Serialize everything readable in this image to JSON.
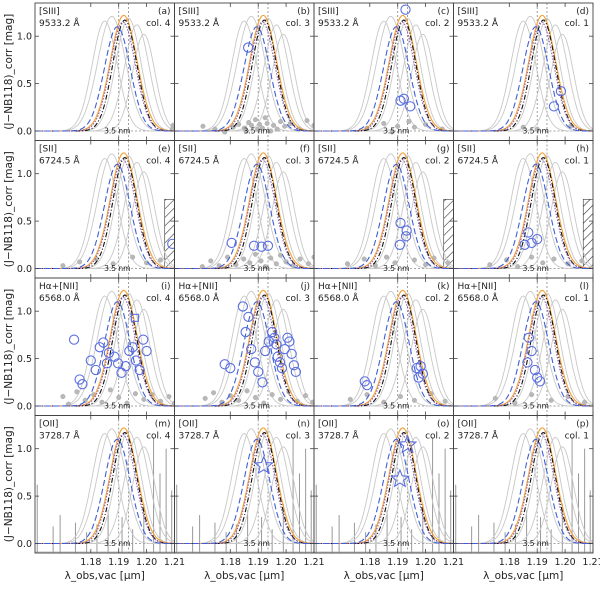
{
  "chart_data": {
    "type": "line",
    "layout": {
      "rows": 4,
      "cols": 4
    },
    "xlabel": "λ_obs,vac [μm]",
    "ylabel": "(J−NB118)_corr [mag]",
    "xlim": [
      1.16,
      1.21
    ],
    "xticks": [
      1.18,
      1.19,
      1.2,
      1.21
    ],
    "xtick_labels": [
      "1.18",
      "1.19",
      "1.20",
      "1.21"
    ],
    "ylim": [
      -0.1,
      1.35
    ],
    "yticks": [
      0.0,
      0.5,
      1.0
    ],
    "ytick_labels": [
      "0.0",
      "0.5",
      "1.0"
    ],
    "bandwidth_label": "3.5 nm",
    "colors": {
      "orange": "#f5a030",
      "black": "#111111",
      "purple": "#9060b0",
      "blue": "#3f5fd8",
      "gray_curve": "#c8c8c8",
      "gray_point": "#b8b8b8",
      "marker": "#5a6fe0"
    },
    "filter_curves": [
      {
        "name": "orange solid",
        "center": 1.1918,
        "sigma": 0.0048,
        "peak": 1.22,
        "color": "orange",
        "dash": ""
      },
      {
        "name": "black dash-dot",
        "center": 1.1922,
        "sigma": 0.0043,
        "peak": 1.17,
        "color": "black",
        "dash": "5,2,1,2"
      },
      {
        "name": "purple dotted",
        "center": 1.1915,
        "sigma": 0.0045,
        "peak": 1.15,
        "color": "purple",
        "dash": "1.5,1.5"
      },
      {
        "name": "blue dashed",
        "center": 1.1895,
        "sigma": 0.0046,
        "peak": 1.1,
        "color": "blue",
        "dash": "6,3"
      }
    ],
    "gray_curves": [
      {
        "center": 1.185,
        "sigma": 0.0045,
        "peak": 1.16
      },
      {
        "center": 1.1875,
        "sigma": 0.005,
        "peak": 1.21
      },
      {
        "center": 1.1935,
        "sigma": 0.0045,
        "peak": 1.19
      },
      {
        "center": 1.1965,
        "sigma": 0.0044,
        "peak": 1.12
      },
      {
        "center": 1.199,
        "sigma": 0.004,
        "peak": 1.02
      }
    ],
    "panels": [
      {
        "id": "a",
        "line": "[SIII]",
        "wave": "9533.2 Å",
        "col": "col. 4",
        "circles": [],
        "gray": [
          [
            1.2095,
            0.06
          ],
          [
            1.2092,
            0.02
          ]
        ]
      },
      {
        "id": "b",
        "line": "[SIII]",
        "wave": "9533.2 Å",
        "col": "col. 3",
        "circles": [
          [
            1.1864,
            0.88
          ]
        ],
        "gray": [
          [
            1.1702,
            0.05
          ],
          [
            1.1745,
            0.02
          ],
          [
            1.178,
            -0.01
          ],
          [
            1.181,
            0.04
          ],
          [
            1.183,
            0.07
          ],
          [
            1.185,
            0.03
          ],
          [
            1.1858,
            0.0
          ],
          [
            1.1866,
            0.09
          ],
          [
            1.1876,
            0.06
          ],
          [
            1.189,
            0.12
          ],
          [
            1.1898,
            0.02
          ],
          [
            1.1905,
            0.07
          ],
          [
            1.1915,
            0.03
          ],
          [
            1.1925,
            0.14
          ],
          [
            1.1932,
            0.08
          ],
          [
            1.1945,
            0.0
          ],
          [
            1.1955,
            0.06
          ],
          [
            1.1968,
            0.02
          ],
          [
            1.198,
            0.1
          ],
          [
            1.1995,
            0.05
          ],
          [
            1.2015,
            0.08
          ],
          [
            1.2045,
            0.02
          ],
          [
            1.2075,
            0.11
          ],
          [
            1.21,
            0.06
          ]
        ]
      },
      {
        "id": "c",
        "line": "[SIII]",
        "wave": "9533.2 Å",
        "col": "col. 2",
        "circles": [
          [
            1.1928,
            1.28
          ],
          [
            1.191,
            0.32
          ],
          [
            1.1922,
            0.34
          ],
          [
            1.1945,
            0.26
          ]
        ],
        "gray": [
          [
            1.179,
            0.03
          ],
          [
            1.185,
            0.08
          ],
          [
            1.188,
            -0.01
          ],
          [
            1.19,
            0.05
          ],
          [
            1.194,
            0.1
          ],
          [
            1.196,
            0.04
          ],
          [
            1.2,
            0.07
          ],
          [
            1.206,
            0.02
          ]
        ]
      },
      {
        "id": "d",
        "line": "[SIII]",
        "wave": "9533.2 Å",
        "col": "col. 1",
        "circles": [
          [
            1.1985,
            0.42
          ],
          [
            1.196,
            0.26
          ]
        ],
        "gray": [
          [
            1.185,
            0.04
          ],
          [
            1.19,
            0.02
          ],
          [
            1.202,
            0.05
          ]
        ]
      },
      {
        "id": "e",
        "line": "[SII]",
        "wave": "6724.5 Å",
        "col": "col. 4",
        "circles": [
          [
            1.2092,
            0.26
          ]
        ],
        "gray": [
          [
            1.17,
            0.03
          ],
          [
            1.176,
            0.07
          ],
          [
            1.182,
            0.1
          ],
          [
            1.188,
            0.05
          ],
          [
            1.195,
            0.12
          ],
          [
            1.2,
            0.06
          ],
          [
            1.205,
            0.09
          ]
        ],
        "hatch": true
      },
      {
        "id": "f",
        "line": "[SII]",
        "wave": "6724.5 Å",
        "col": "col. 3",
        "circles": [
          [
            1.1805,
            0.27
          ],
          [
            1.1885,
            0.24
          ],
          [
            1.1912,
            0.23
          ],
          [
            1.1935,
            0.24
          ]
        ],
        "gray": [
          [
            1.17,
            0.02
          ],
          [
            1.173,
            0.08
          ],
          [
            1.176,
            0.03
          ],
          [
            1.179,
            0.12
          ],
          [
            1.182,
            0.04
          ],
          [
            1.1848,
            0.1
          ],
          [
            1.187,
            0.06
          ],
          [
            1.189,
            0.15
          ],
          [
            1.191,
            0.08
          ],
          [
            1.1925,
            0.02
          ],
          [
            1.1945,
            0.11
          ],
          [
            1.1965,
            0.05
          ],
          [
            1.198,
            0.14
          ],
          [
            1.2,
            0.07
          ],
          [
            1.2025,
            0.03
          ],
          [
            1.205,
            0.1
          ],
          [
            1.208,
            0.05
          ],
          [
            1.21,
            0.12
          ]
        ]
      },
      {
        "id": "g",
        "line": "[SII]",
        "wave": "6724.5 Å",
        "col": "col. 2",
        "circles": [
          [
            1.191,
            0.48
          ],
          [
            1.1932,
            0.4
          ],
          [
            1.193,
            0.34
          ],
          [
            1.1908,
            0.25
          ]
        ],
        "gray": [
          [
            1.172,
            0.05
          ],
          [
            1.178,
            0.1
          ],
          [
            1.182,
            0.03
          ],
          [
            1.186,
            0.12
          ],
          [
            1.189,
            0.06
          ],
          [
            1.196,
            0.09
          ],
          [
            1.2,
            0.04
          ],
          [
            1.203,
            0.11
          ],
          [
            1.208,
            0.06
          ]
        ],
        "hatch": true
      },
      {
        "id": "h",
        "line": "[SII]",
        "wave": "6724.5 Å",
        "col": "col. 1",
        "circles": [
          [
            1.1868,
            0.38
          ],
          [
            1.1855,
            0.25
          ],
          [
            1.188,
            0.27
          ],
          [
            1.19,
            0.31
          ]
        ],
        "gray": [
          [
            1.173,
            0.04
          ],
          [
            1.179,
            0.09
          ],
          [
            1.183,
            0.02
          ],
          [
            1.188,
            0.12
          ],
          [
            1.192,
            0.06
          ],
          [
            1.196,
            0.1
          ],
          [
            1.201,
            0.05
          ],
          [
            1.206,
            0.08
          ]
        ],
        "hatch": true
      },
      {
        "id": "i",
        "line": "Hα+[NII]",
        "wave": "6568.0 Å",
        "col": "col. 4",
        "circles": [
          [
            1.174,
            0.7
          ],
          [
            1.176,
            0.28
          ],
          [
            1.177,
            0.23
          ],
          [
            1.18,
            0.48
          ],
          [
            1.1818,
            0.38
          ],
          [
            1.1832,
            0.62
          ],
          [
            1.1845,
            0.67
          ],
          [
            1.1858,
            0.45
          ],
          [
            1.1865,
            0.56
          ],
          [
            1.1885,
            0.52
          ],
          [
            1.1898,
            0.45
          ],
          [
            1.191,
            0.35
          ],
          [
            1.1925,
            0.42
          ],
          [
            1.1938,
            0.58
          ],
          [
            1.195,
            0.62
          ],
          [
            1.1962,
            0.48
          ],
          [
            1.1975,
            0.38
          ],
          [
            1.1988,
            0.7
          ],
          [
            1.2,
            0.58
          ]
        ],
        "squares": [
          [
            1.1958,
            0.93
          ]
        ],
        "gray": [
          [
            1.17,
            0.1
          ],
          [
            1.172,
            0.02
          ],
          [
            1.175,
            0.15
          ],
          [
            1.178,
            0.06
          ],
          [
            1.181,
            0.12
          ],
          [
            1.184,
            0.04
          ],
          [
            1.187,
            0.17
          ],
          [
            1.19,
            0.09
          ],
          [
            1.193,
            0.03
          ],
          [
            1.196,
            0.13
          ],
          [
            1.199,
            0.07
          ],
          [
            1.202,
            0.12
          ],
          [
            1.205,
            0.05
          ],
          [
            1.208,
            0.1
          ],
          [
            1.21,
            0.03
          ]
        ]
      },
      {
        "id": "j",
        "line": "Hα+[NII]",
        "wave": "6568.0 Å",
        "col": "col. 3",
        "circles": [
          [
            1.178,
            0.44
          ],
          [
            1.18,
            0.4
          ],
          [
            1.1832,
            1.4
          ],
          [
            1.1845,
            1.05
          ],
          [
            1.1855,
            0.78
          ],
          [
            1.1865,
            0.94
          ],
          [
            1.1875,
            0.6
          ],
          [
            1.1888,
            0.46
          ],
          [
            1.19,
            0.36
          ],
          [
            1.1915,
            0.25
          ],
          [
            1.1925,
            0.58
          ],
          [
            1.1938,
            0.68
          ],
          [
            1.195,
            0.78
          ],
          [
            1.1958,
            0.72
          ],
          [
            1.1965,
            0.65
          ],
          [
            1.197,
            0.52
          ],
          [
            1.1978,
            0.46
          ],
          [
            1.1985,
            0.4
          ],
          [
            1.1995,
            0.6
          ],
          [
            1.2005,
            0.72
          ],
          [
            1.2012,
            0.68
          ],
          [
            1.202,
            0.55
          ],
          [
            1.2028,
            0.43
          ],
          [
            1.2035,
            0.36
          ]
        ],
        "gray": [
          [
            1.171,
            0.08
          ],
          [
            1.174,
            0.14
          ],
          [
            1.177,
            0.04
          ],
          [
            1.18,
            0.11
          ],
          [
            1.183,
            0.06
          ],
          [
            1.186,
            0.16
          ],
          [
            1.189,
            0.09
          ],
          [
            1.192,
            0.03
          ],
          [
            1.195,
            0.12
          ],
          [
            1.198,
            0.07
          ],
          [
            1.201,
            0.15
          ],
          [
            1.204,
            0.05
          ],
          [
            1.207,
            0.11
          ],
          [
            1.2095,
            0.04
          ]
        ]
      },
      {
        "id": "k",
        "line": "Hα+[NII]",
        "wave": "6568.0 Å",
        "col": "col. 2",
        "circles": [
          [
            1.1782,
            0.26
          ],
          [
            1.179,
            0.22
          ],
          [
            1.1968,
            0.4
          ],
          [
            1.1982,
            0.42
          ],
          [
            1.199,
            0.34
          ],
          [
            1.1975,
            0.3
          ]
        ],
        "gray": [
          [
            1.173,
            0.07
          ],
          [
            1.179,
            0.12
          ],
          [
            1.185,
            0.04
          ],
          [
            1.191,
            0.1
          ],
          [
            1.196,
            0.06
          ],
          [
            1.202,
            0.13
          ],
          [
            1.207,
            0.05
          ]
        ]
      },
      {
        "id": "l",
        "line": "Hα+[NII]",
        "wave": "6568.0 Å",
        "col": "col. 1",
        "circles": [
          [
            1.187,
            0.72
          ],
          [
            1.188,
            0.58
          ],
          [
            1.1892,
            0.38
          ],
          [
            1.19,
            0.3
          ],
          [
            1.191,
            0.26
          ],
          [
            1.1865,
            0.46
          ]
        ],
        "gray": [
          [
            1.175,
            0.08
          ],
          [
            1.182,
            0.03
          ],
          [
            1.188,
            0.12
          ],
          [
            1.195,
            0.06
          ],
          [
            1.201,
            0.1
          ],
          [
            1.207,
            0.04
          ]
        ]
      },
      {
        "id": "m",
        "line": "[OII]",
        "wave": "3728.7 Å",
        "col": "col. 4",
        "circles": [],
        "gray": [],
        "spectrum": true
      },
      {
        "id": "n",
        "line": "[OII]",
        "wave": "3728.7 Å",
        "col": "col. 3",
        "circles": [],
        "gray": [],
        "spectrum": true,
        "stars": [
          [
            1.192,
            0.82
          ]
        ]
      },
      {
        "id": "o",
        "line": "[OII]",
        "wave": "3728.7 Å",
        "col": "col. 2",
        "circles": [],
        "gray": [],
        "spectrum": true,
        "stars": [
          [
            1.1908,
            0.68
          ],
          [
            1.1935,
            1.04
          ]
        ]
      },
      {
        "id": "p",
        "line": "[OII]",
        "wave": "3728.7 Å",
        "col": "col. 1",
        "circles": [],
        "gray": [],
        "spectrum": true
      }
    ],
    "spectrum_lines": [
      [
        1.1608,
        0.62
      ],
      [
        1.1665,
        0.18
      ],
      [
        1.169,
        0.3
      ],
      [
        1.1745,
        0.22
      ],
      [
        1.1785,
        0.12
      ],
      [
        1.1822,
        0.2
      ],
      [
        1.1862,
        0.35
      ],
      [
        1.1912,
        0.28
      ],
      [
        1.195,
        0.15
      ],
      [
        1.199,
        0.42
      ],
      [
        1.2025,
        1.12
      ],
      [
        1.2048,
        0.74
      ],
      [
        1.207,
        1.0
      ],
      [
        1.209,
        0.56
      ],
      [
        1.21,
        0.3
      ]
    ]
  }
}
